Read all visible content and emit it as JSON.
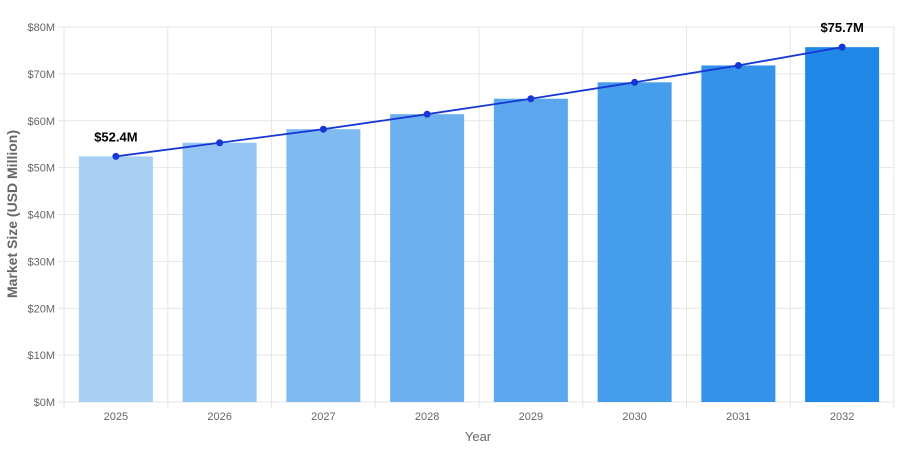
{
  "chart_data": {
    "type": "bar",
    "categories": [
      "2025",
      "2026",
      "2027",
      "2028",
      "2029",
      "2030",
      "2031",
      "2032"
    ],
    "series": [
      {
        "type": "bar",
        "values": [
          52.4,
          55.3,
          58.2,
          61.4,
          64.7,
          68.2,
          71.8,
          75.7
        ]
      },
      {
        "type": "line",
        "values": [
          52.4,
          55.3,
          58.2,
          61.4,
          64.7,
          68.2,
          71.8,
          75.7
        ]
      }
    ],
    "bar_colors": [
      "#a8d0f5",
      "#93c5f4",
      "#7fbaf1",
      "#6cb0ef",
      "#5aa7ee",
      "#469deb",
      "#3492ea",
      "#1f87e5"
    ],
    "line_color": "#1736d6",
    "xlabel": "Year",
    "ylabel": "Market Size (USD Million)",
    "ylim": [
      0,
      80
    ],
    "yticks": [
      "$0M",
      "$10M",
      "$20M",
      "$30M",
      "$40M",
      "$50M",
      "$60M",
      "$70M",
      "$80M"
    ],
    "annotations": [
      {
        "category": "2025",
        "value": 52.4,
        "text": "$52.4M"
      },
      {
        "category": "2032",
        "value": 75.7,
        "text": "$75.7M"
      }
    ],
    "grid": true,
    "legend": "none"
  }
}
